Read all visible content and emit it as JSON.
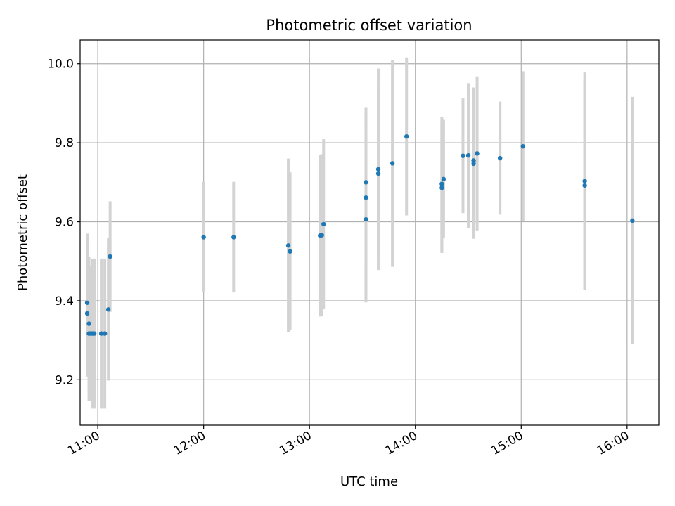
{
  "chart_data": {
    "type": "scatter",
    "title": "Photometric offset variation",
    "xlabel": "UTC time",
    "ylabel": "Photometric offset",
    "x_axis_type": "time",
    "xlim": [
      "10:50",
      "16:18"
    ],
    "ylim": [
      9.085,
      10.06
    ],
    "x_ticks": [
      "11:00",
      "12:00",
      "13:00",
      "14:00",
      "15:00",
      "16:00"
    ],
    "y_ticks": [
      9.2,
      9.4,
      9.6,
      9.8,
      10.0
    ],
    "y_tick_labels": [
      "9.2",
      "9.4",
      "9.6",
      "9.8",
      "10.0"
    ],
    "grid": true,
    "point_color": "#1f77b4",
    "errorbar_color": "#d3d3d3",
    "points": [
      {
        "x": "10:54",
        "y": 9.395,
        "err": 0.175
      },
      {
        "x": "10:54",
        "y": 9.368,
        "err": 0.16
      },
      {
        "x": "10:55",
        "y": 9.342,
        "err": 0.17
      },
      {
        "x": "10:55",
        "y": 9.317,
        "err": 0.17
      },
      {
        "x": "10:56",
        "y": 9.317,
        "err": 0.17
      },
      {
        "x": "10:57",
        "y": 9.317,
        "err": 0.19
      },
      {
        "x": "10:58",
        "y": 9.317,
        "err": 0.19
      },
      {
        "x": "11:02",
        "y": 9.317,
        "err": 0.19
      },
      {
        "x": "11:04",
        "y": 9.317,
        "err": 0.19
      },
      {
        "x": "11:06",
        "y": 9.378,
        "err": 0.18
      },
      {
        "x": "11:07",
        "y": 9.512,
        "err": 0.14
      },
      {
        "x": "12:00",
        "y": 9.561,
        "err": 0.14
      },
      {
        "x": "12:17",
        "y": 9.561,
        "err": 0.14
      },
      {
        "x": "12:48",
        "y": 9.54,
        "err": 0.22
      },
      {
        "x": "12:49",
        "y": 9.525,
        "err": 0.2
      },
      {
        "x": "13:06",
        "y": 9.565,
        "err": 0.205
      },
      {
        "x": "13:07",
        "y": 9.566,
        "err": 0.205
      },
      {
        "x": "13:08",
        "y": 9.594,
        "err": 0.215
      },
      {
        "x": "13:32",
        "y": 9.7,
        "err": 0.19
      },
      {
        "x": "13:32",
        "y": 9.661,
        "err": 0.17
      },
      {
        "x": "13:32",
        "y": 9.606,
        "err": 0.21
      },
      {
        "x": "13:39",
        "y": 9.733,
        "err": 0.255
      },
      {
        "x": "13:39",
        "y": 9.722,
        "err": 0.22
      },
      {
        "x": "13:47",
        "y": 9.748,
        "err": 0.262
      },
      {
        "x": "13:55",
        "y": 9.816,
        "err": 0.2
      },
      {
        "x": "14:15",
        "y": 9.696,
        "err": 0.17
      },
      {
        "x": "14:15",
        "y": 9.686,
        "err": 0.165
      },
      {
        "x": "14:16",
        "y": 9.708,
        "err": 0.15
      },
      {
        "x": "14:27",
        "y": 9.767,
        "err": 0.145
      },
      {
        "x": "14:30",
        "y": 9.768,
        "err": 0.183
      },
      {
        "x": "14:33",
        "y": 9.755,
        "err": 0.185
      },
      {
        "x": "14:33",
        "y": 9.747,
        "err": 0.19
      },
      {
        "x": "14:35",
        "y": 9.773,
        "err": 0.195
      },
      {
        "x": "14:48",
        "y": 9.761,
        "err": 0.143
      },
      {
        "x": "15:01",
        "y": 9.791,
        "err": 0.19
      },
      {
        "x": "15:36",
        "y": 9.703,
        "err": 0.275
      },
      {
        "x": "15:36",
        "y": 9.692,
        "err": 0.265
      },
      {
        "x": "16:03",
        "y": 9.603,
        "err": 0.313
      }
    ]
  }
}
